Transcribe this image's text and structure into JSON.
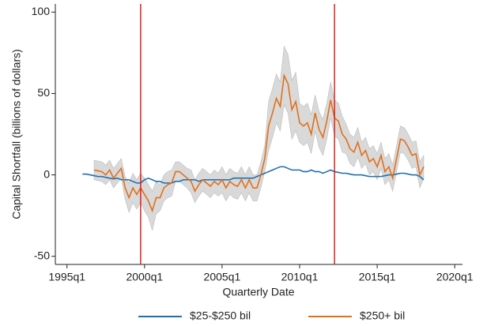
{
  "chart_data": {
    "type": "line",
    "x_label": "Quarterly Date",
    "y_label": "Capital Shortfall (billions of dollars)",
    "x": [
      "1996q1",
      "1996q2",
      "1996q3",
      "1996q4",
      "1997q1",
      "1997q2",
      "1997q3",
      "1997q4",
      "1998q1",
      "1998q2",
      "1998q3",
      "1998q4",
      "1999q1",
      "1999q2",
      "1999q3",
      "1999q4",
      "2000q1",
      "2000q2",
      "2000q3",
      "2000q4",
      "2001q1",
      "2001q2",
      "2001q3",
      "2001q4",
      "2002q1",
      "2002q2",
      "2002q3",
      "2002q4",
      "2003q1",
      "2003q2",
      "2003q3",
      "2003q4",
      "2004q1",
      "2004q2",
      "2004q3",
      "2004q4",
      "2005q1",
      "2005q2",
      "2005q3",
      "2005q4",
      "2006q1",
      "2006q2",
      "2006q3",
      "2006q4",
      "2007q1",
      "2007q2",
      "2007q3",
      "2007q4",
      "2008q1",
      "2008q2",
      "2008q3",
      "2008q4",
      "2009q1",
      "2009q2",
      "2009q3",
      "2009q4",
      "2010q1",
      "2010q2",
      "2010q3",
      "2010q4",
      "2011q1",
      "2011q2",
      "2011q3",
      "2011q4",
      "2012q1",
      "2012q2",
      "2012q3",
      "2012q4",
      "2013q1",
      "2013q2",
      "2013q3",
      "2013q4",
      "2014q1",
      "2014q2",
      "2014q3",
      "2014q4",
      "2015q1",
      "2015q2",
      "2015q3",
      "2015q4",
      "2016q1",
      "2016q2",
      "2016q3",
      "2016q4",
      "2017q1",
      "2017q2",
      "2017q3",
      "2017q4",
      "2018q1"
    ],
    "series": [
      {
        "name": "$25-$250 bil",
        "color": "#1f6fb0",
        "values": [
          0.5,
          0.5,
          0,
          -0.5,
          -1,
          -1,
          -1.5,
          -2,
          -2.5,
          -2,
          -3,
          -3,
          -3,
          -4,
          -5,
          -5,
          -3,
          -2,
          -3,
          -4,
          -4,
          -5,
          -5,
          -5,
          -4,
          -4,
          -3,
          -3,
          -3,
          -3,
          -4,
          -3,
          -3,
          -3,
          -3,
          -3,
          -3,
          -3,
          -3,
          -2,
          -2,
          -2,
          -2,
          -2,
          -2,
          -1,
          0,
          1,
          2,
          3,
          4,
          5,
          5,
          4,
          3,
          3,
          3,
          2,
          2,
          3,
          2,
          2,
          1,
          2,
          3,
          2,
          1.5,
          1,
          1,
          0.5,
          0,
          0,
          0,
          -0.5,
          -1,
          -1,
          -1,
          -1,
          -0.5,
          0,
          0,
          0.5,
          1,
          1,
          0.5,
          0,
          0,
          -1,
          -3
        ]
      },
      {
        "name": "$250+ bil",
        "color": "#e0701c",
        "values": [
          null,
          null,
          null,
          3,
          2.5,
          2,
          0,
          3,
          -2,
          1,
          4,
          -8,
          -14,
          -8,
          -12,
          -8,
          -12,
          -16,
          -22,
          -14,
          -14,
          -8,
          -6,
          -5,
          2,
          2,
          0,
          -2,
          -4,
          -10,
          -6,
          -3,
          -5,
          -7,
          -4,
          -6,
          -3,
          -8,
          -4,
          -6,
          -7,
          -3,
          -8,
          -3,
          -8,
          -8,
          0,
          10,
          30,
          38,
          47,
          42,
          61,
          56,
          40,
          45,
          32,
          30,
          32,
          25,
          38,
          28,
          23,
          33,
          46,
          35,
          33,
          25,
          22,
          16,
          14,
          20,
          12,
          15,
          8,
          10,
          5,
          12,
          2,
          5,
          -2,
          10,
          22,
          21,
          17,
          12,
          13,
          0,
          5
        ],
        "upper": [
          null,
          null,
          null,
          9,
          8.5,
          8,
          6,
          9,
          4,
          7,
          10,
          -1,
          -5,
          1,
          -3,
          1,
          -2,
          -6,
          -10,
          -4,
          -6,
          0,
          2,
          3,
          8,
          8,
          6,
          4,
          3,
          -3,
          1,
          4,
          2,
          0,
          3,
          1,
          5,
          0,
          4,
          2,
          1,
          5,
          0,
          5,
          0,
          0,
          8,
          18,
          45,
          53,
          62,
          57,
          79,
          74,
          58,
          63,
          44,
          42,
          44,
          37,
          49,
          39,
          34,
          44,
          57,
          46,
          44,
          36,
          31,
          25,
          23,
          29,
          20,
          23,
          16,
          18,
          13,
          20,
          10,
          13,
          6,
          18,
          30,
          29,
          25,
          20,
          21,
          8,
          12
        ],
        "lower": [
          null,
          null,
          null,
          -3,
          -3.5,
          -4,
          -6,
          -3,
          -8,
          -5,
          -2,
          -15,
          -23,
          -17,
          -21,
          -17,
          -22,
          -26,
          -34,
          -24,
          -22,
          -16,
          -14,
          -13,
          -4,
          -4,
          -6,
          -8,
          -11,
          -17,
          -13,
          -10,
          -12,
          -14,
          -11,
          -13,
          -11,
          -16,
          -12,
          -14,
          -15,
          -11,
          -16,
          -11,
          -16,
          -16,
          -8,
          2,
          15,
          23,
          32,
          27,
          43,
          38,
          22,
          27,
          20,
          18,
          20,
          13,
          27,
          17,
          12,
          22,
          35,
          24,
          22,
          14,
          13,
          7,
          5,
          11,
          4,
          7,
          0,
          2,
          -3,
          4,
          -6,
          -3,
          -10,
          2,
          14,
          13,
          9,
          4,
          5,
          -8,
          -2
        ],
        "band_color": "#d9d9d9"
      }
    ],
    "xlim": [
      "1994q2",
      "2020q3"
    ],
    "xticks": [
      "1995q1",
      "2000q1",
      "2005q1",
      "2010q1",
      "2015q1",
      "2020q1"
    ],
    "ylim": [
      -55,
      105
    ],
    "yticks": [
      -50,
      0,
      50,
      100
    ],
    "vlines": [
      "1999q4",
      "2012q2"
    ],
    "vline_color": "#e0201c",
    "legend": "bottom"
  }
}
